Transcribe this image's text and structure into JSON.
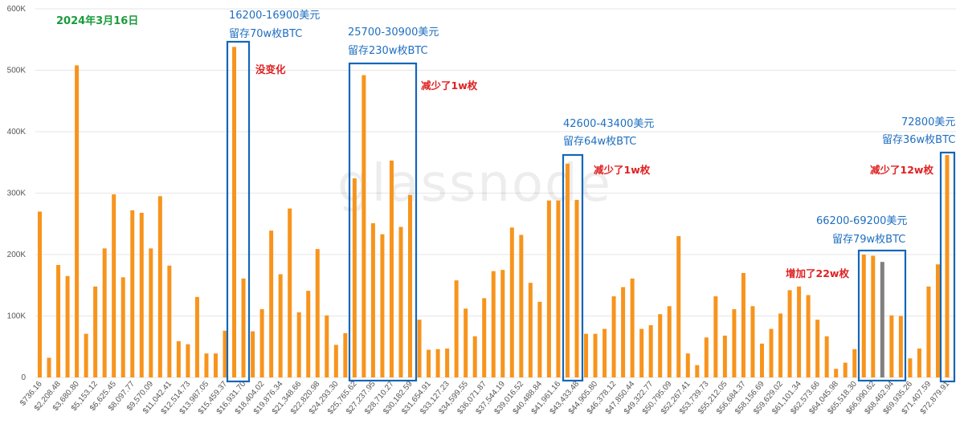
{
  "watermark": "glassnode",
  "date_label": "2024年3月16日",
  "colors": {
    "bar": "#f7941d",
    "bar_highlight": "#808080",
    "box": "#1466b8",
    "annotation_blue": "#1f6fc0",
    "annotation_red": "#e02020",
    "date": "#1a9b3c"
  },
  "chart_data": {
    "type": "bar",
    "ylim": [
      0,
      600000
    ],
    "yticks": [
      0,
      100000,
      200000,
      300000,
      400000,
      500000,
      600000
    ],
    "ytick_labels": [
      "0",
      "100K",
      "200K",
      "300K",
      "400K",
      "500K",
      "600K"
    ],
    "grid": true,
    "xtick_labels": [
      "$736.16",
      "$2,208.48",
      "$3,680.80",
      "$5,153.12",
      "$6,625.45",
      "$8,097.77",
      "$9,570.09",
      "$11,042.41",
      "$12,514.73",
      "$13,987.05",
      "$15,459.37",
      "$16,931.70",
      "$18,404.02",
      "$19,876.34",
      "$21,348.66",
      "$22,820.98",
      "$24,293.30",
      "$25,765.62",
      "$27,237.95",
      "$28,710.27",
      "$30,182.59",
      "$31,654.91",
      "$33,127.23",
      "$34,599.55",
      "$36,071.87",
      "$37,544.19",
      "$39,016.52",
      "$40,488.84",
      "$41,961.16",
      "$43,433.48",
      "$44,905.80",
      "$46,378.12",
      "$47,850.44",
      "$49,322.77",
      "$50,795.09",
      "$52,267.41",
      "$53,739.73",
      "$55,212.05",
      "$56,684.37",
      "$58,156.69",
      "$59,629.02",
      "$61,101.34",
      "$62,573.66",
      "$64,045.98",
      "$65,518.30",
      "$66,990.62",
      "$68,462.94",
      "$69,935.26",
      "$71,407.59",
      "$72,879.91"
    ],
    "values": [
      270000,
      32000,
      183000,
      165000,
      508000,
      71000,
      148000,
      210000,
      298000,
      163000,
      272000,
      268000,
      210000,
      295000,
      182000,
      59000,
      54000,
      131000,
      39000,
      39000,
      76000,
      538000,
      161000,
      75000,
      111000,
      239000,
      168000,
      275000,
      106000,
      141000,
      209000,
      101000,
      53000,
      72000,
      324000,
      492000,
      251000,
      233000,
      353000,
      245000,
      297000,
      94000,
      45000,
      46000,
      47000,
      158000,
      112000,
      67000,
      129000,
      173000,
      175000,
      244000,
      232000,
      154000,
      123000,
      288000,
      288000,
      348000,
      289000,
      71000,
      71000,
      79000,
      132000,
      147000,
      161000,
      79000,
      85000,
      103000,
      116000,
      230000,
      39000,
      20000,
      65000,
      132000,
      68000,
      111000,
      170000,
      116000,
      55000,
      79000,
      104000,
      142000,
      148000,
      134000,
      94000,
      67000,
      14000,
      24000,
      46000,
      200000,
      198000,
      188000,
      101000,
      100000,
      31000,
      47000,
      148000,
      184000,
      362000
    ],
    "highlighted_bar_index": 91
  },
  "annotations": {
    "box1": {
      "range": "16200-16900美元",
      "holding": "留存70w枚BTC",
      "change": "没变化"
    },
    "box2": {
      "range": "25700-30900美元",
      "holding": "留存230w枚BTC",
      "change": "减少了1w枚"
    },
    "box3": {
      "range": "42600-43400美元",
      "holding": "留存64w枚BTC",
      "change": "减少了1w枚"
    },
    "box4": {
      "range": "66200-69200美元",
      "holding": "留存79w枚BTC",
      "change": "增加了22w枚"
    },
    "box5": {
      "range": "72800美元",
      "holding": "留存36w枚BTC",
      "change": "减少了12w枚"
    }
  }
}
